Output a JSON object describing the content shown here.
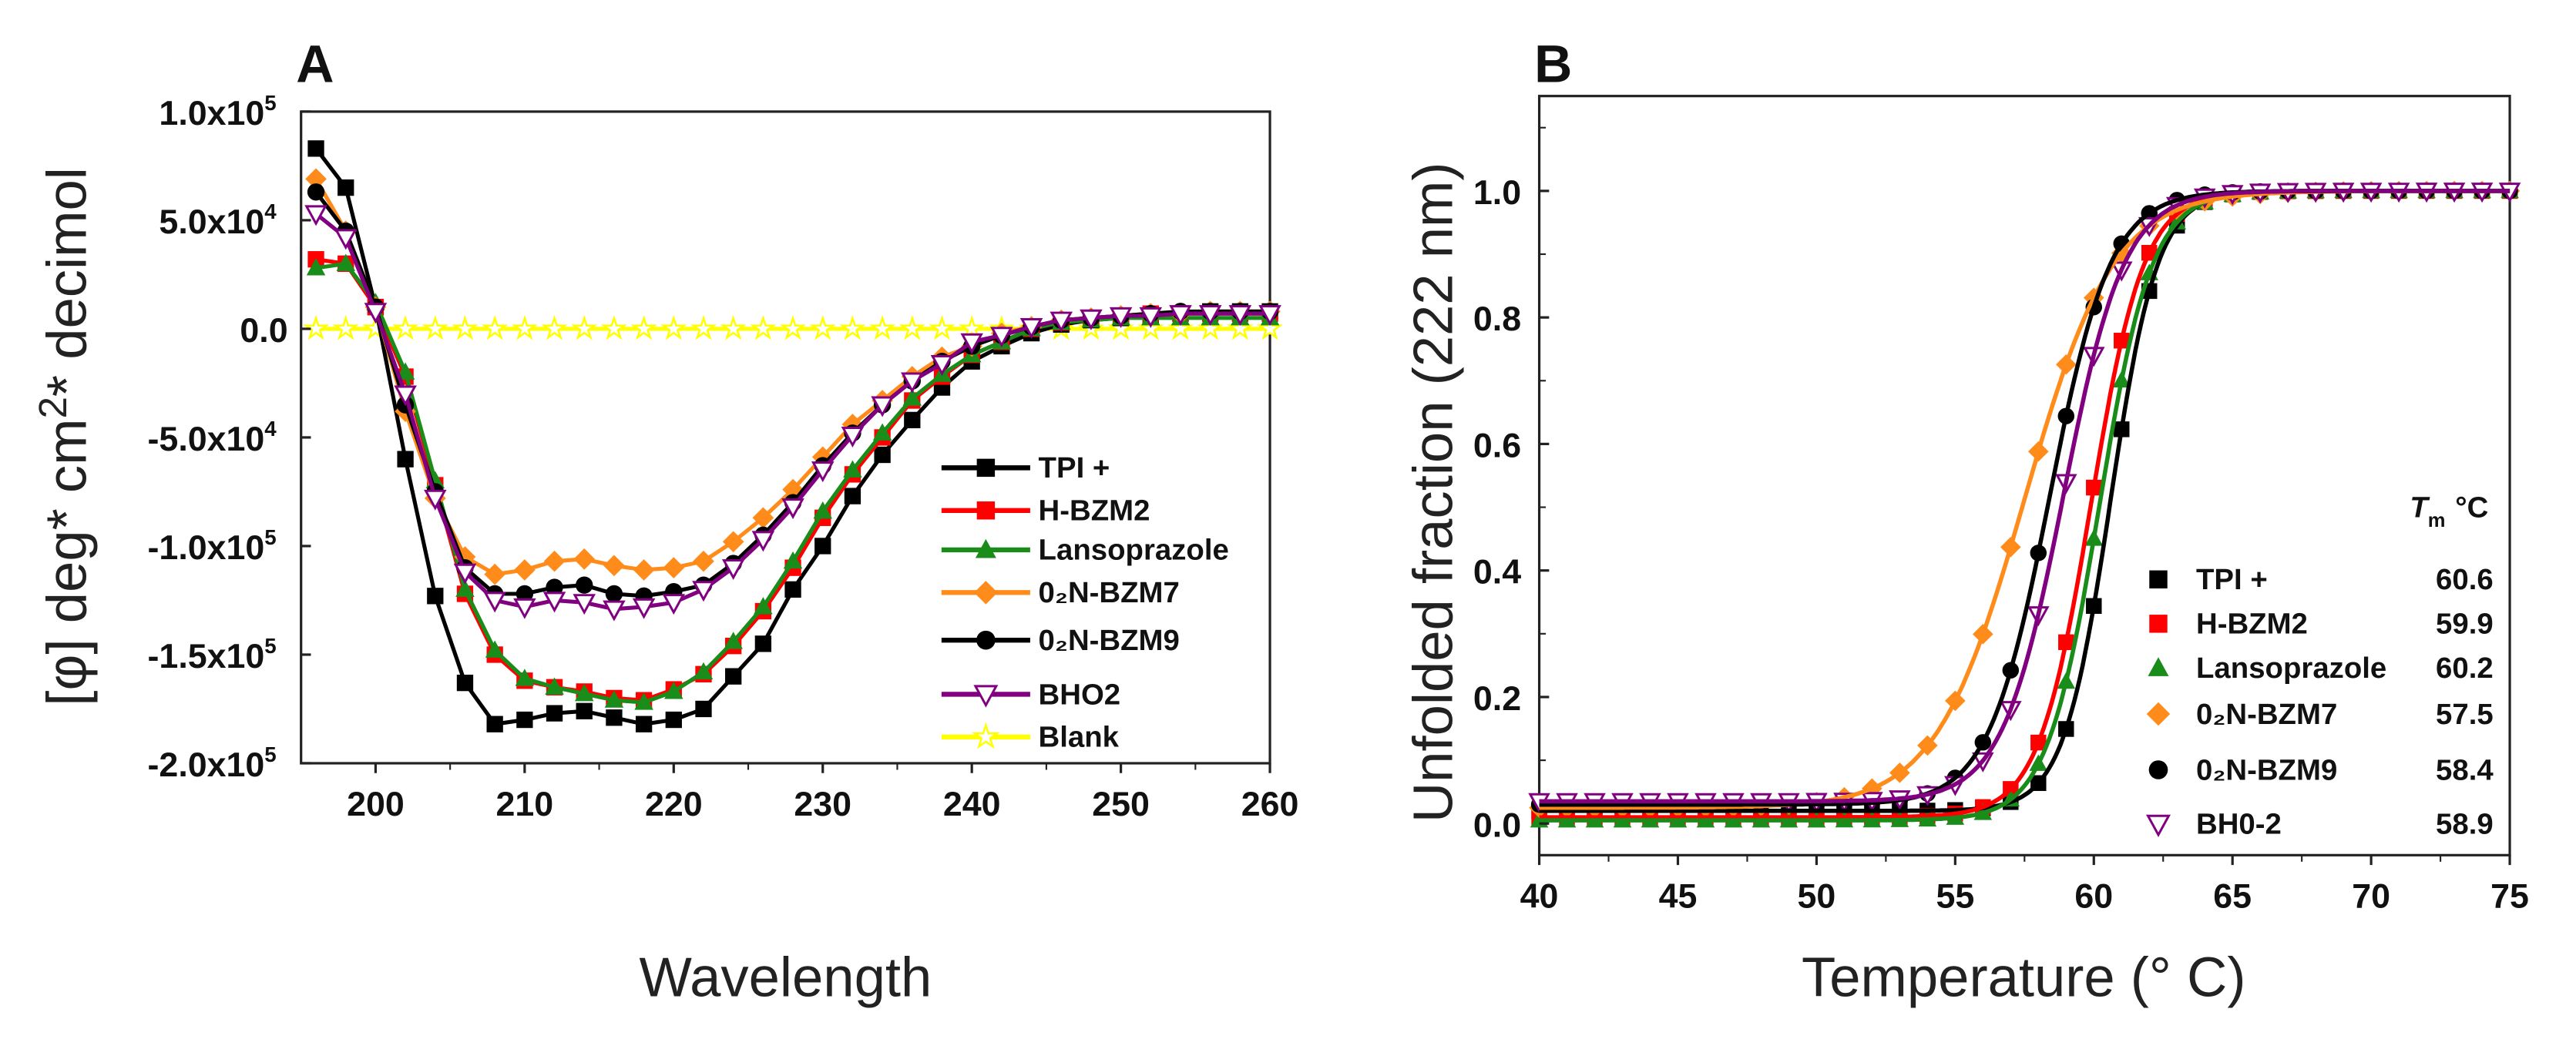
{
  "chart_data": [
    {
      "panel": "A",
      "type": "line",
      "xlabel": "Wavelength",
      "ylabel": {
        "pre": "[φ] deg* cm",
        "sup": "2",
        "post": "* decimol"
      },
      "xlim": [
        195,
        260
      ],
      "ylim": [
        -200000,
        100000
      ],
      "xticks": [
        200,
        210,
        220,
        230,
        240,
        250,
        260
      ],
      "yticks": [
        {
          "value": 100000,
          "base": "1.0x10",
          "exp": "5"
        },
        {
          "value": 50000,
          "base": "5.0x10",
          "exp": "4"
        },
        {
          "value": 0,
          "base": "0.0",
          "exp": ""
        },
        {
          "value": -50000,
          "base": "-5.0x10",
          "exp": "4"
        },
        {
          "value": -100000,
          "base": "-1.0x10",
          "exp": "5"
        },
        {
          "value": -150000,
          "base": "-1.5x10",
          "exp": "5"
        },
        {
          "value": -200000,
          "base": "-2.0x10",
          "exp": "5"
        }
      ],
      "legend_position": "bottom-right",
      "x": [
        196,
        198,
        200,
        202,
        204,
        206,
        208,
        210,
        212,
        214,
        216,
        218,
        220,
        222,
        224,
        226,
        228,
        230,
        232,
        234,
        236,
        238,
        240,
        242,
        244,
        246,
        248,
        250,
        252,
        254,
        256,
        258,
        260
      ],
      "value_unit": 10000,
      "series": [
        {
          "name": "TPI +",
          "color": "#000000",
          "marker": "square",
          "values": [
            8.3,
            6.5,
            1.0,
            -6.0,
            -12.3,
            -16.3,
            -18.2,
            -18.0,
            -17.7,
            -17.6,
            -17.9,
            -18.2,
            -18.0,
            -17.5,
            -16.0,
            -14.5,
            -12.0,
            -10.0,
            -7.7,
            -5.8,
            -4.2,
            -2.7,
            -1.5,
            -0.8,
            -0.2,
            0.2,
            0.4,
            0.5,
            0.6,
            0.7,
            0.8,
            0.8,
            0.8
          ]
        },
        {
          "name": "H-BZM2",
          "color": "#ff0000",
          "marker": "square",
          "values": [
            3.2,
            3.0,
            1.0,
            -2.2,
            -7.2,
            -12.2,
            -15.0,
            -16.2,
            -16.5,
            -16.7,
            -17.0,
            -17.1,
            -16.6,
            -15.9,
            -14.6,
            -13.0,
            -11.0,
            -8.7,
            -6.7,
            -5.0,
            -3.3,
            -2.2,
            -1.2,
            -0.6,
            0.0,
            0.3,
            0.5,
            0.6,
            0.7,
            0.7,
            0.7,
            0.7,
            0.7
          ]
        },
        {
          "name": "Lansoprazole",
          "color": "#1a8c1a",
          "marker": "triangle",
          "values": [
            2.8,
            3.0,
            1.2,
            -2.0,
            -7.0,
            -12.0,
            -14.8,
            -16.1,
            -16.5,
            -16.8,
            -17.1,
            -17.2,
            -16.7,
            -15.8,
            -14.4,
            -12.8,
            -10.7,
            -8.4,
            -6.5,
            -4.8,
            -3.2,
            -2.1,
            -1.2,
            -0.6,
            0.0,
            0.3,
            0.4,
            0.5,
            0.5,
            0.5,
            0.5,
            0.5,
            0.5
          ]
        },
        {
          "name": "0₂N-BZM7",
          "color": "#ff8c1a",
          "marker": "diamond",
          "values": [
            6.9,
            4.5,
            1.0,
            -3.8,
            -7.8,
            -10.5,
            -11.3,
            -11.1,
            -10.7,
            -10.6,
            -10.9,
            -11.1,
            -11.0,
            -10.7,
            -9.8,
            -8.7,
            -7.4,
            -5.9,
            -4.4,
            -3.3,
            -2.2,
            -1.3,
            -0.8,
            -0.2,
            0.1,
            0.4,
            0.5,
            0.6,
            0.7,
            0.7,
            0.8,
            0.8,
            0.8
          ]
        },
        {
          "name": "0₂N-BZM9",
          "color": "#000000",
          "marker": "circle",
          "values": [
            6.3,
            4.5,
            1.0,
            -3.5,
            -7.5,
            -11.0,
            -12.2,
            -12.2,
            -11.9,
            -11.8,
            -12.2,
            -12.3,
            -12.1,
            -11.8,
            -10.8,
            -9.5,
            -8.0,
            -6.3,
            -4.8,
            -3.5,
            -2.4,
            -1.5,
            -0.8,
            -0.3,
            0.1,
            0.4,
            0.5,
            0.6,
            0.7,
            0.8,
            0.8,
            0.8,
            0.8
          ]
        },
        {
          "name": "BHO2",
          "color": "#800080",
          "marker": "triangle-down-open",
          "values": [
            5.3,
            4.2,
            0.8,
            -3.0,
            -7.8,
            -11.2,
            -12.5,
            -12.8,
            -12.5,
            -12.6,
            -12.9,
            -12.8,
            -12.6,
            -12.0,
            -11.0,
            -9.7,
            -8.2,
            -6.5,
            -4.9,
            -3.5,
            -2.4,
            -1.6,
            -0.6,
            -0.3,
            0.1,
            0.4,
            0.5,
            0.6,
            0.6,
            0.7,
            0.7,
            0.7,
            0.7
          ]
        },
        {
          "name": "Blank",
          "color": "#ffff00",
          "marker": "star",
          "values": [
            0,
            0,
            0,
            0,
            0,
            0,
            0,
            0,
            0,
            0,
            0,
            0,
            0,
            0,
            0,
            0,
            0,
            0,
            0,
            0,
            0,
            0,
            0,
            0,
            0,
            0,
            0,
            0,
            0,
            0,
            0,
            0,
            0
          ]
        }
      ]
    },
    {
      "panel": "B",
      "type": "scatter",
      "xlabel": "Temperature (° C)",
      "ylabel": "Unfolded fraction (222 nm)",
      "xlim": [
        40,
        75
      ],
      "ylim": [
        -0.05,
        1.15
      ],
      "xticks": [
        "40",
        "45",
        "50",
        "55",
        "60",
        "65",
        "70",
        "75"
      ],
      "yticks": [
        "0.0",
        "0.2",
        "0.4",
        "0.6",
        "0.8",
        "1.0"
      ],
      "legend_position": "bottom-right",
      "legend_header": {
        "symbol": "T",
        "sub": "m",
        "unit": "°C"
      },
      "point_temperatures": [
        40,
        41,
        42,
        43,
        44,
        45,
        46,
        47,
        48,
        49,
        50,
        51,
        52,
        53,
        54,
        55,
        56,
        57,
        58,
        59,
        60,
        61,
        62,
        63,
        64,
        65,
        66,
        67,
        68,
        69,
        70,
        71,
        72,
        73,
        74,
        75
      ],
      "fit_model": "baseline + (1 - baseline) / (1 + exp((Tm - T) / width))",
      "series": [
        {
          "name": "TPI +",
          "tm": "60.6",
          "width": 0.85,
          "baseline": 0.02,
          "color": "#000000",
          "marker": "square"
        },
        {
          "name": "H-BZM2",
          "tm": "59.9",
          "width": 0.95,
          "baseline": 0.01,
          "color": "#ff0000",
          "marker": "square"
        },
        {
          "name": "Lansoprazole",
          "tm": "60.2",
          "width": 0.95,
          "baseline": 0.005,
          "color": "#1a8c1a",
          "marker": "triangle"
        },
        {
          "name": "0₂N-BZM7",
          "tm": "57.5",
          "width": 1.6,
          "baseline": 0.025,
          "color": "#ff8c1a",
          "marker": "diamond"
        },
        {
          "name": "0₂N-BZM9",
          "tm": "58.4",
          "width": 1.1,
          "baseline": 0.03,
          "color": "#000000",
          "marker": "circle"
        },
        {
          "name": "BH0-2",
          "tm": "58.9",
          "width": 1.1,
          "baseline": 0.035,
          "color": "#800080",
          "marker": "triangle-down-open"
        }
      ]
    }
  ]
}
